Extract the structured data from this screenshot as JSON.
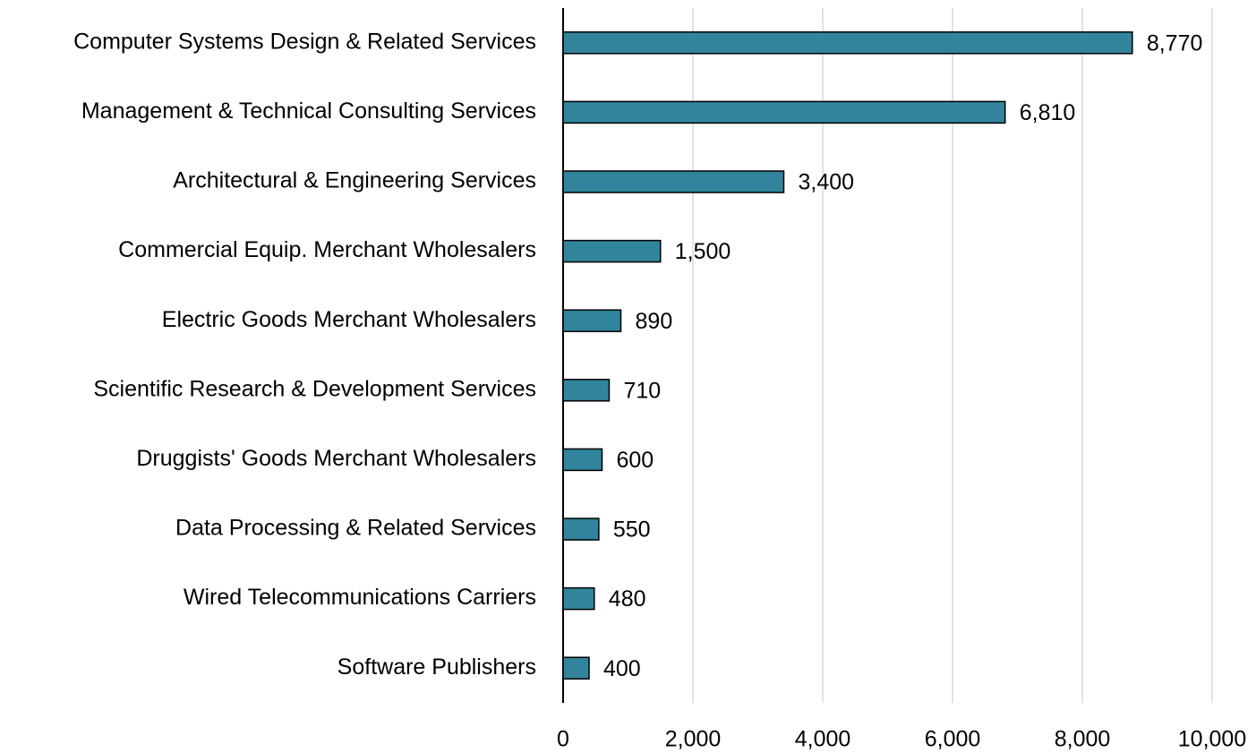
{
  "chart_data": {
    "type": "bar",
    "orientation": "horizontal",
    "categories": [
      "Computer Systems Design & Related Services",
      "Management & Technical Consulting Services",
      "Architectural & Engineering Services",
      "Commercial Equip. Merchant Wholesalers",
      "Electric Goods Merchant Wholesalers",
      "Scientific Research & Development Services",
      "Druggists' Goods Merchant Wholesalers",
      "Data Processing & Related Services",
      "Wired Telecommunications Carriers",
      "Software Publishers"
    ],
    "values": [
      8770,
      6810,
      3400,
      1500,
      890,
      710,
      600,
      550,
      480,
      400
    ],
    "value_labels": [
      "8,770",
      "6,810",
      "3,400",
      "1,500",
      "890",
      "710",
      "600",
      "550",
      "480",
      "400"
    ],
    "color": "#31849b",
    "xlim": [
      0,
      10000
    ],
    "xticks": [
      0,
      {
        "value": 2000,
        "label": "2,000"
      },
      {
        "value": 4000,
        "label": "4,000"
      },
      {
        "value": 6000,
        "label": "6,000"
      },
      {
        "value": 8000,
        "label": "8,000"
      },
      {
        "value": 10000,
        "label": "10,000"
      }
    ],
    "grid": true
  }
}
